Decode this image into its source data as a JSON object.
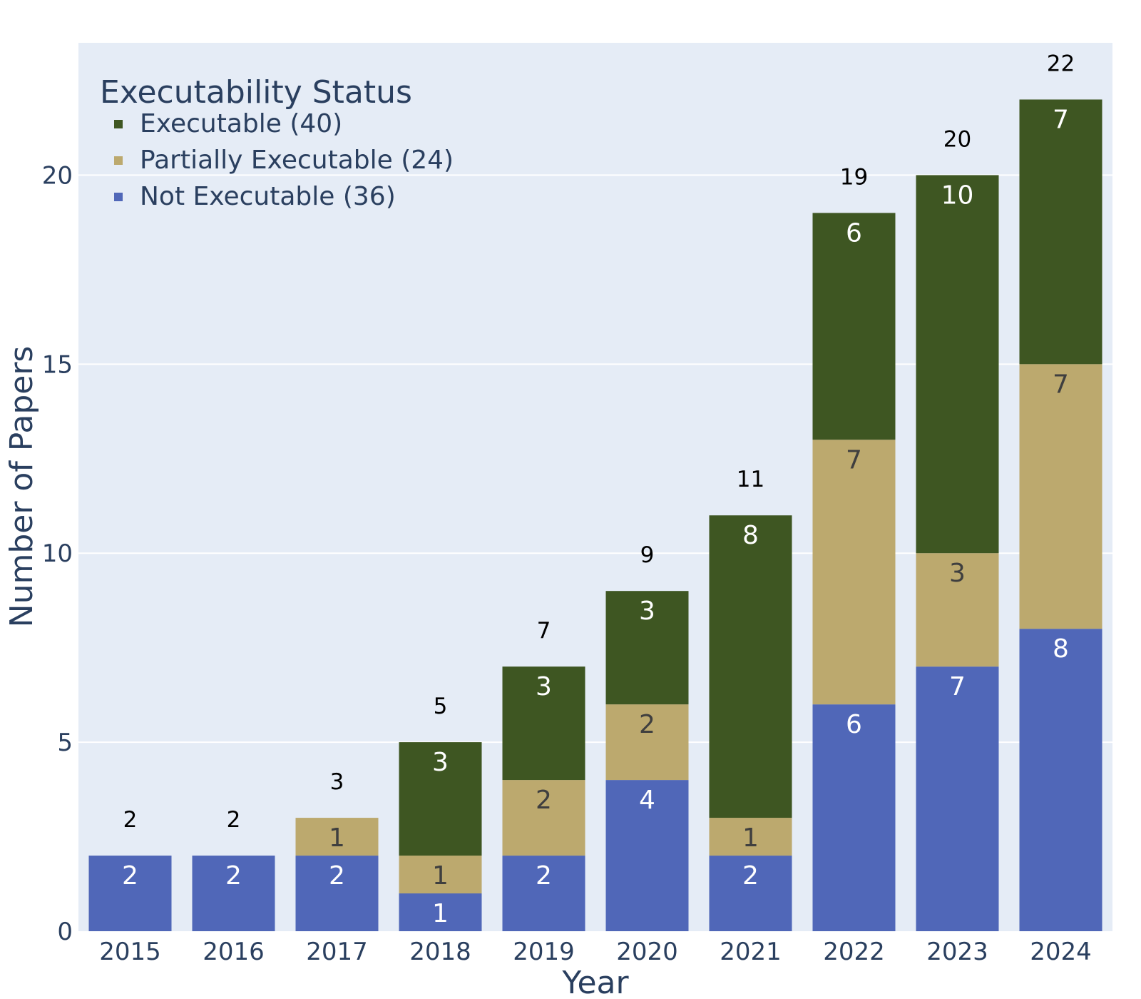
{
  "chart_data": {
    "type": "bar",
    "barmode": "stack",
    "categories": [
      "2015",
      "2016",
      "2017",
      "2018",
      "2019",
      "2020",
      "2021",
      "2022",
      "2023",
      "2024"
    ],
    "series": [
      {
        "name": "Not Executable (36)",
        "color": "#5067b8",
        "label_color": "#ffffff",
        "values": [
          2,
          2,
          2,
          1,
          2,
          4,
          2,
          6,
          7,
          8
        ]
      },
      {
        "name": "Partially Executable (24)",
        "color": "#bca96e",
        "label_color": "#3f3f3f",
        "values": [
          0,
          0,
          1,
          1,
          2,
          2,
          1,
          7,
          3,
          7
        ]
      },
      {
        "name": "Executable (40)",
        "color": "#3e5622",
        "label_color": "#ffffff",
        "values": [
          0,
          0,
          0,
          3,
          3,
          3,
          8,
          6,
          10,
          7
        ]
      }
    ],
    "totals": [
      2,
      2,
      3,
      5,
      7,
      9,
      11,
      19,
      20,
      22
    ],
    "xlabel": "Year",
    "ylabel": "Number of Papers",
    "ylim": [
      0,
      23.5
    ],
    "yticks": [
      0,
      5,
      10,
      15,
      20
    ],
    "grid": true,
    "legend": {
      "title": "Executability Status",
      "placement": "top-left",
      "order": [
        "Executable (40)",
        "Partially Executable (24)",
        "Not Executable (36)"
      ]
    },
    "plot_background": "#e5ecf6"
  }
}
